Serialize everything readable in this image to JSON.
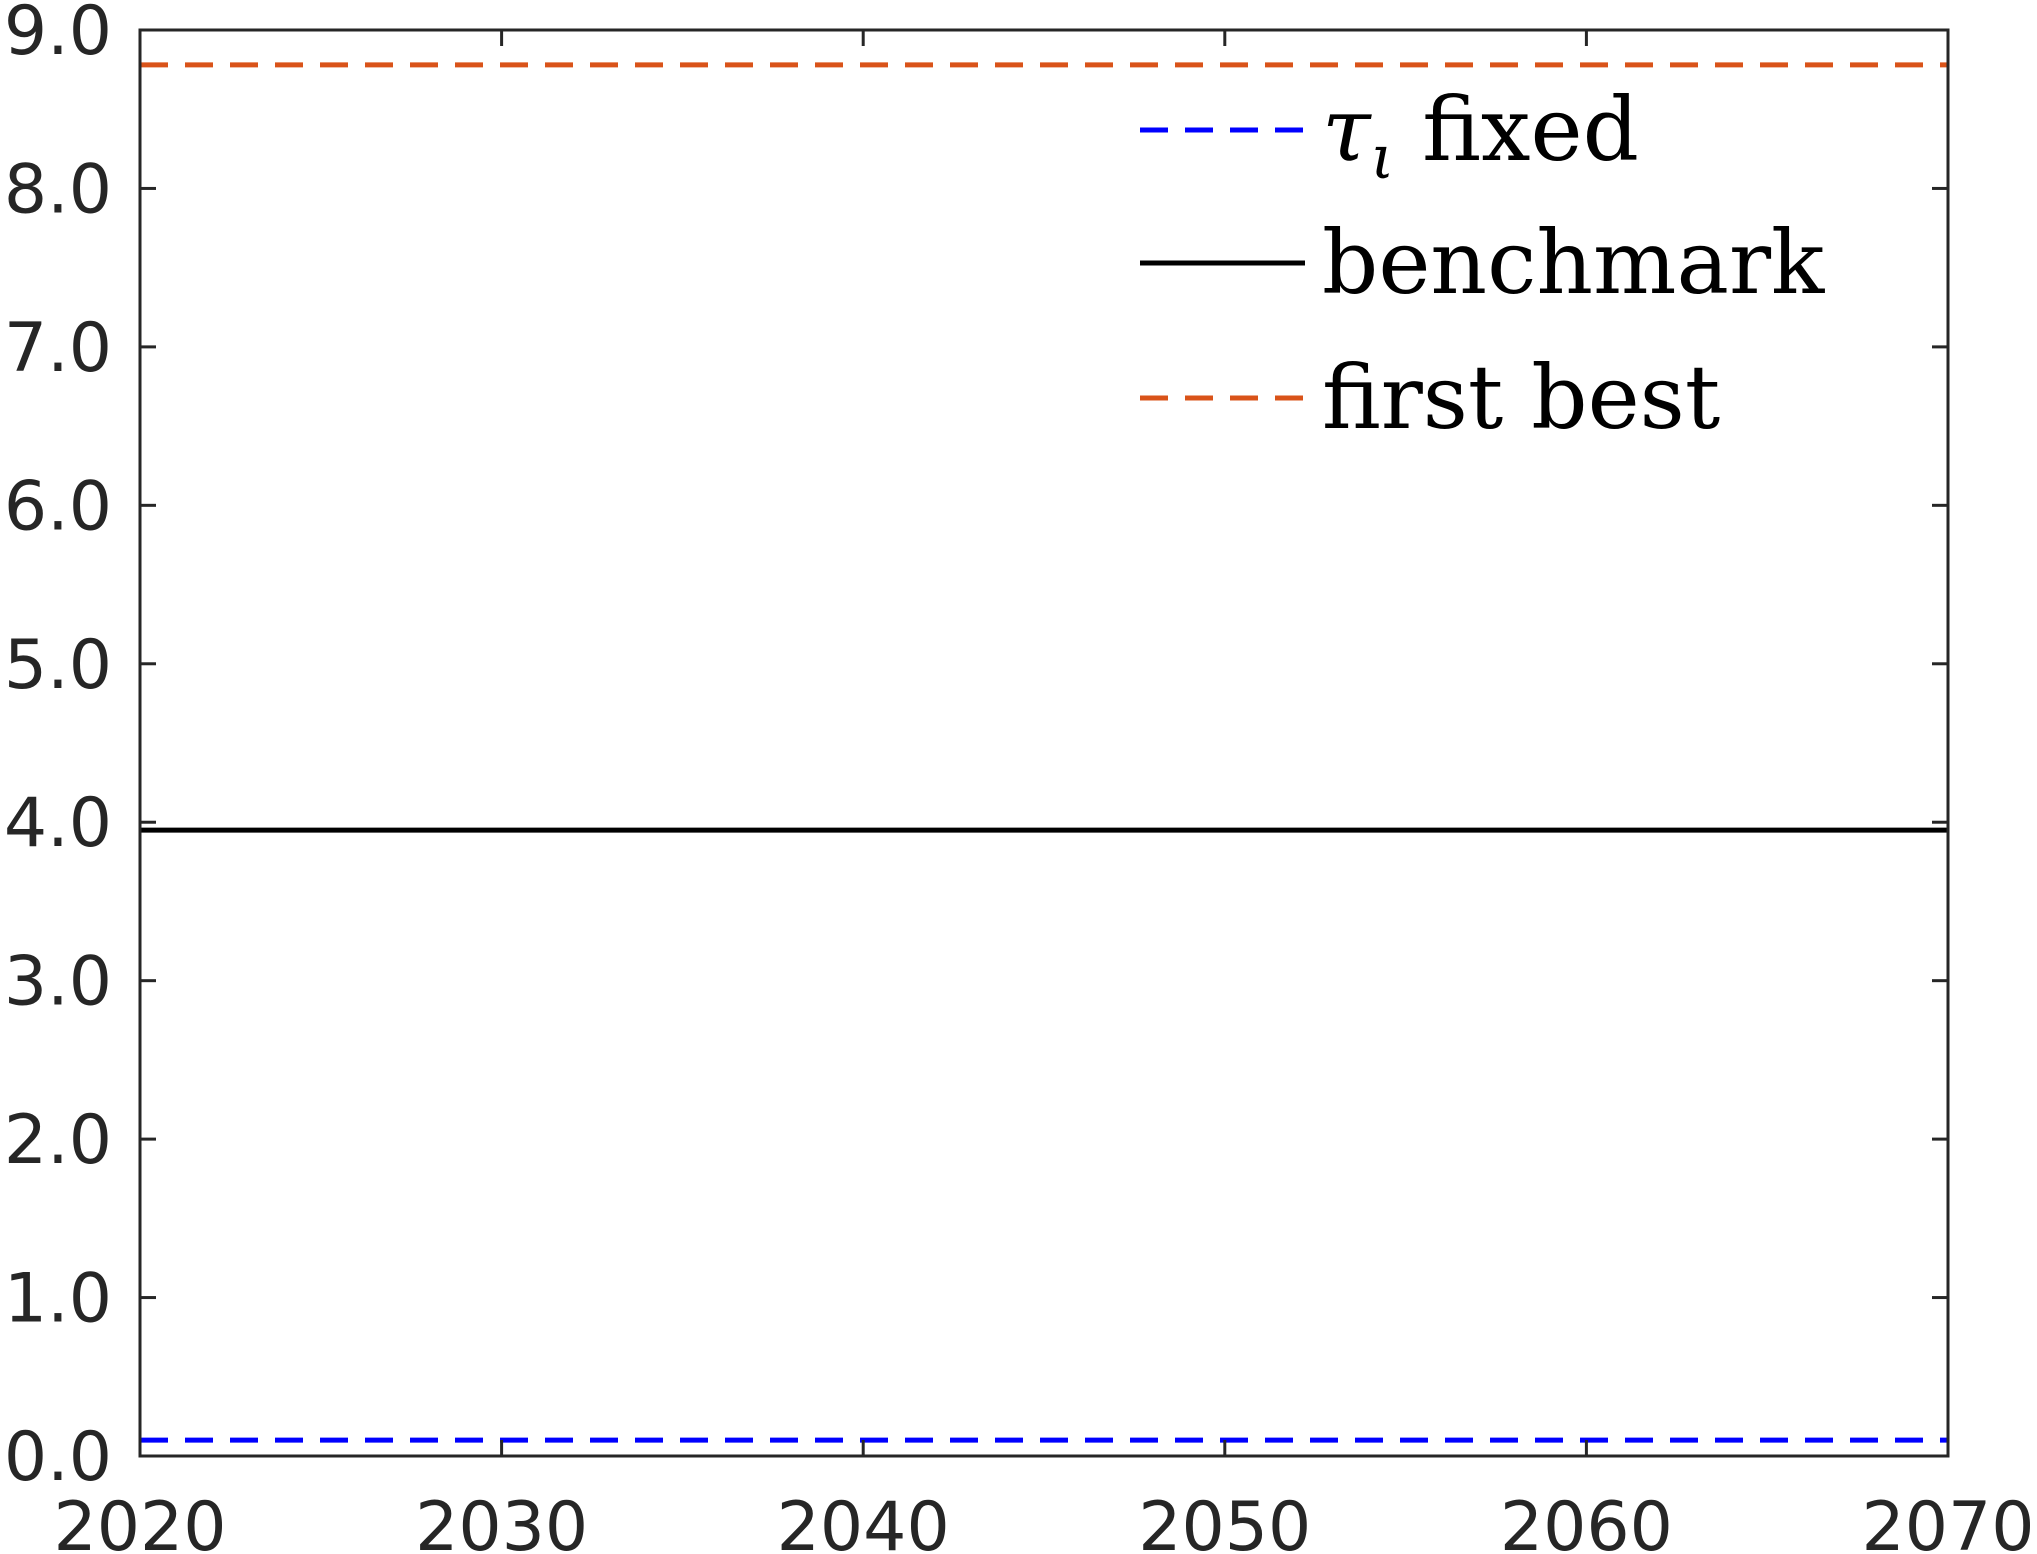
{
  "chart_data": {
    "type": "line",
    "title": "",
    "xlabel": "",
    "ylabel": "",
    "xlim": [
      2020,
      2070
    ],
    "ylim": [
      0.0,
      9.0
    ],
    "xticks": [
      2020,
      2030,
      2040,
      2050,
      2060,
      2070
    ],
    "xtick_labels": [
      "2020",
      "2030",
      "2040",
      "2050",
      "2060",
      "2070"
    ],
    "yticks": [
      0.0,
      1.0,
      2.0,
      3.0,
      4.0,
      5.0,
      6.0,
      7.0,
      8.0,
      9.0
    ],
    "ytick_labels": [
      "0.0",
      "1.0",
      "2.0",
      "3.0",
      "4.0",
      "5.0",
      "6.0",
      "7.0",
      "8.0",
      "9.0"
    ],
    "grid": false,
    "legend_position": "top-right",
    "series": [
      {
        "name": "τι fixed",
        "legend_main": "τ",
        "legend_sub": "ι",
        "legend_rest": " fixed",
        "color": "#0000ff",
        "style": "dashed",
        "x": [
          2020,
          2070
        ],
        "y": [
          0.1,
          0.1
        ]
      },
      {
        "name": "benchmark",
        "legend_main": "",
        "legend_sub": "",
        "legend_rest": "benchmark",
        "color": "#000000",
        "style": "solid",
        "x": [
          2020,
          2070
        ],
        "y": [
          3.95,
          3.95
        ]
      },
      {
        "name": "first best",
        "legend_main": "",
        "legend_sub": "",
        "legend_rest": "first best",
        "color": "#d95319",
        "style": "dashed",
        "x": [
          2020,
          2070
        ],
        "y": [
          8.78,
          8.78
        ]
      }
    ]
  }
}
